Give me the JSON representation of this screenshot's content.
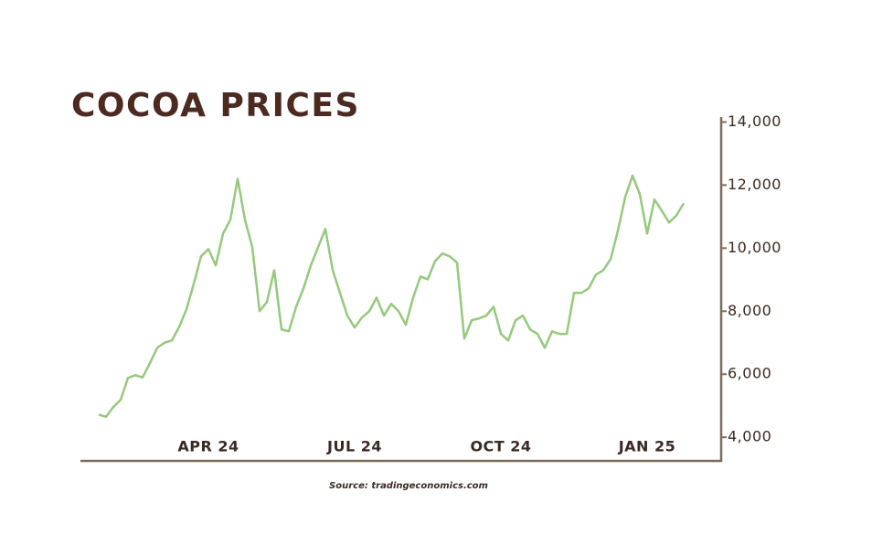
{
  "chart_data": {
    "type": "line",
    "title": "COCOA PRICES",
    "source": "Source: tradingeconomics.com",
    "categories": [
      null,
      null,
      null,
      null,
      null,
      null,
      null,
      null,
      null,
      null,
      null,
      null,
      null,
      null,
      null,
      "APR 24",
      null,
      null,
      null,
      null,
      null,
      null,
      null,
      null,
      null,
      null,
      null,
      null,
      null,
      null,
      null,
      null,
      null,
      null,
      null,
      "JUL 24",
      null,
      null,
      null,
      null,
      null,
      null,
      null,
      null,
      null,
      null,
      null,
      null,
      null,
      null,
      null,
      null,
      null,
      null,
      null,
      "OCT 24",
      null,
      null,
      null,
      null,
      null,
      null,
      null,
      null,
      null,
      null,
      null,
      null,
      null,
      null,
      null,
      null,
      null,
      null,
      null,
      "JAN 25",
      null,
      null,
      null,
      null,
      null
    ],
    "values": [
      4720,
      4650,
      4960,
      5190,
      5880,
      5970,
      5900,
      6350,
      6840,
      7000,
      7070,
      7500,
      8060,
      8870,
      9740,
      9970,
      9450,
      10460,
      10900,
      12200,
      10900,
      10030,
      8000,
      8290,
      9300,
      7420,
      7360,
      8140,
      8720,
      9450,
      10030,
      10610,
      9300,
      8580,
      7860,
      7480,
      7800,
      8000,
      8430,
      7860,
      8230,
      8000,
      7570,
      8430,
      9100,
      9010,
      9590,
      9830,
      9740,
      9540,
      7130,
      7710,
      7770,
      7860,
      8140,
      7280,
      7070,
      7710,
      7860,
      7420,
      7280,
      6840,
      7360,
      7280,
      7280,
      8580,
      8580,
      8720,
      9160,
      9300,
      9650,
      10550,
      11620,
      12300,
      11710,
      10460,
      11540,
      11190,
      10810,
      11040,
      11420
    ],
    "color": "#95c97c",
    "ylim": [
      3250,
      14100
    ],
    "yticks": [
      {
        "value": 4000,
        "label": "4,000"
      },
      {
        "value": 6000,
        "label": "6,000"
      },
      {
        "value": 8000,
        "label": "8,000"
      },
      {
        "value": 10000,
        "label": "10,000"
      },
      {
        "value": 12000,
        "label": "12,000"
      },
      {
        "value": 14000,
        "label": "14,000"
      }
    ],
    "y_axis_side": "right"
  }
}
